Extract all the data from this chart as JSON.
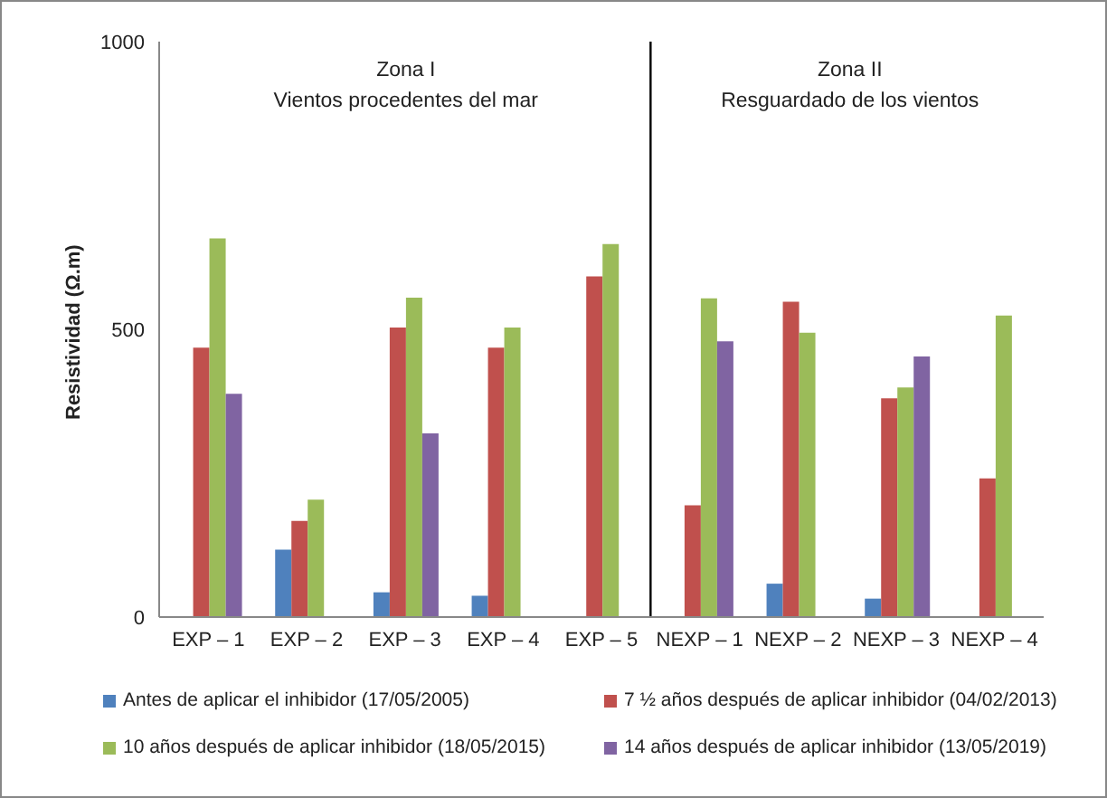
{
  "chart_data": {
    "type": "bar",
    "ylabel": "Resistividad (Ω.m)",
    "categories": [
      "EXP – 1",
      "EXP – 2",
      "EXP – 3",
      "EXP – 4",
      "EXP – 5",
      "NEXP – 1",
      "NEXP – 2",
      "NEXP – 3",
      "NEXP – 4"
    ],
    "series": [
      {
        "name": "Antes de aplicar el inhibidor (17/05/2005)",
        "color": "#4f81bd",
        "values": [
          null,
          117,
          43,
          37,
          null,
          null,
          58,
          32,
          null
        ]
      },
      {
        "name": "7 ½ años después de aplicar inhibidor (04/02/2013)",
        "color": "#c0504d",
        "values": [
          468,
          167,
          503,
          468,
          592,
          194,
          548,
          380,
          241
        ]
      },
      {
        "name": "10 años después de aplicar inhibidor (18/05/2015)",
        "color": "#9bbb59",
        "values": [
          658,
          204,
          555,
          503,
          648,
          554,
          494,
          399,
          524
        ]
      },
      {
        "name": "14 años después de aplicar inhibidor (13/05/2019)",
        "color": "#8064a2",
        "values": [
          388,
          null,
          319,
          null,
          null,
          479,
          null,
          453,
          null
        ]
      }
    ],
    "ylim": [
      0,
      1000
    ],
    "yticks": [
      0,
      500,
      1000
    ],
    "grid": false,
    "legend": "bottom",
    "annotations": [
      "Zona I",
      "Vientos procedentes del mar",
      "Zona II",
      "Resguardado de los vientos"
    ]
  }
}
